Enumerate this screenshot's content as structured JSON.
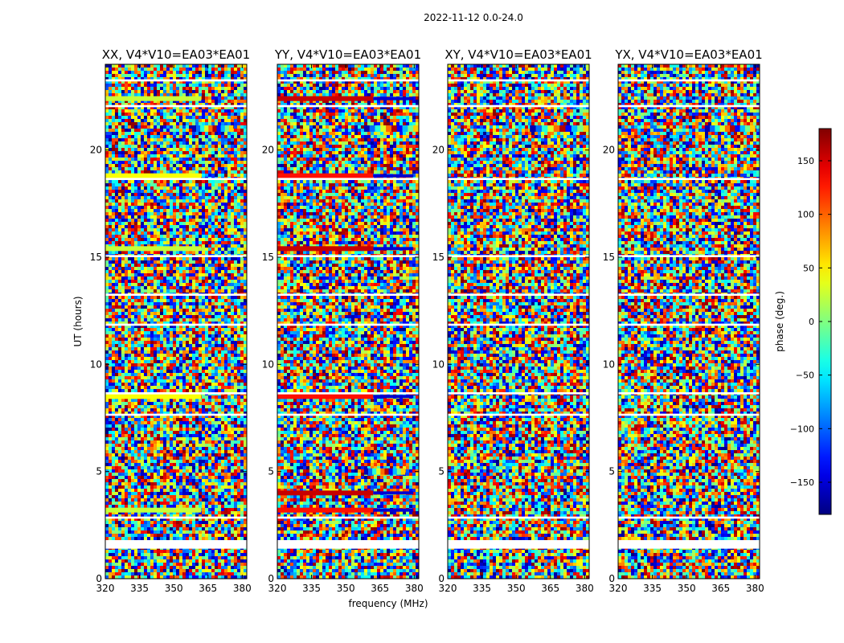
{
  "figure": {
    "suptitle": "2022-11-12 0.0-24.0",
    "xlabel": "frequency (MHz)",
    "ylabel": "UT (hours)"
  },
  "chart_data": {
    "type": "heatmap",
    "title": "2022-11-12 0.0-24.0",
    "xlabel": "frequency (MHz)",
    "ylabel": "UT (hours)",
    "xlim": [
      320,
      382
    ],
    "ylim": [
      0,
      24
    ],
    "xticks": [
      320,
      335,
      350,
      365,
      380
    ],
    "yticks": [
      0,
      5,
      10,
      15,
      20
    ],
    "colormap": "jet",
    "panels": [
      {
        "title": "XX, V4*V10=EA03*EA01"
      },
      {
        "title": "YY, V4*V10=EA03*EA01"
      },
      {
        "title": "XY, V4*V10=EA03*EA01"
      },
      {
        "title": "YX, V4*V10=EA03*EA01"
      }
    ],
    "colorbar": {
      "label": "phase (deg.)",
      "range": [
        -180,
        180
      ],
      "ticks": [
        -150,
        -100,
        -50,
        0,
        50,
        100,
        150
      ],
      "tick_labels": [
        "−150",
        "−100",
        "−50",
        "0",
        "50",
        "100",
        "150"
      ]
    },
    "flagged_time_ranges_hours": [
      [
        1.4,
        1.8
      ],
      [
        2.8,
        2.9
      ],
      [
        7.6,
        7.7
      ],
      [
        8.6,
        8.7
      ],
      [
        11.8,
        11.9
      ],
      [
        13.2,
        13.3
      ],
      [
        15.0,
        15.1
      ],
      [
        18.6,
        18.7
      ],
      [
        22.0,
        22.1
      ],
      [
        23.2,
        23.3
      ]
    ],
    "band_times_hours": {
      "XX": [
        3.2,
        8.5,
        15.4,
        18.8,
        22.4
      ],
      "YY": [
        3.2,
        4.0,
        8.5,
        15.4,
        18.8,
        22.4
      ],
      "XY": [],
      "YX": []
    },
    "fringe_features": [
      {
        "panel": "XX",
        "time_hours": 21.0,
        "freq_range_mhz": [
          358,
          376
        ]
      },
      {
        "panel": "YY",
        "time_hours": 21.0,
        "freq_range_mhz": [
          358,
          382
        ]
      },
      {
        "panel": "XY",
        "time_hours": 21.0,
        "freq_range_mhz": [
          356,
          382
        ]
      },
      {
        "panel": "YX",
        "time_hours": 21.0,
        "freq_range_mhz": [
          358,
          380
        ]
      },
      {
        "panel": "YY",
        "time_hours": 5.0,
        "freq_range_mhz": [
          358,
          376
        ]
      }
    ]
  }
}
